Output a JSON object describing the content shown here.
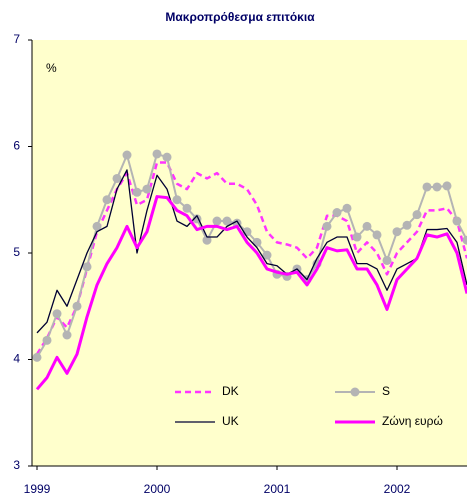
{
  "chart_data": {
    "type": "line",
    "title": "Μακροπρόθεσμα επιτόκια",
    "y_unit_label": "%",
    "categories": [
      "1999",
      null,
      null,
      null,
      null,
      null,
      null,
      null,
      null,
      null,
      null,
      null,
      "2000",
      null,
      null,
      null,
      null,
      null,
      null,
      null,
      null,
      null,
      null,
      null,
      "2001",
      null,
      null,
      null,
      null,
      null,
      null,
      null,
      null,
      null,
      null,
      null,
      "2002",
      null,
      null,
      null,
      null,
      null,
      null,
      null
    ],
    "ylim": [
      3,
      7
    ],
    "yticks": [
      3,
      4,
      5,
      6,
      7
    ],
    "grid": false,
    "series": [
      {
        "name": "DK",
        "color": "#ff33ff",
        "dash": true,
        "marker": false,
        "width": 2.5,
        "values": [
          4.05,
          4.2,
          4.4,
          4.3,
          4.5,
          4.85,
          5.2,
          5.4,
          5.6,
          5.75,
          5.45,
          5.5,
          5.85,
          5.85,
          5.65,
          5.6,
          5.75,
          5.7,
          5.75,
          5.65,
          5.65,
          5.6,
          5.45,
          5.2,
          5.1,
          5.08,
          5.05,
          4.95,
          5.05,
          5.35,
          5.35,
          5.3,
          5.0,
          5.1,
          5.0,
          4.8,
          5.0,
          5.1,
          5.2,
          5.4,
          5.4,
          5.42,
          5.3,
          4.95
        ]
      },
      {
        "name": "S",
        "color": "#b4b4b4",
        "dash": false,
        "marker": true,
        "width": 2,
        "values": [
          4.02,
          4.18,
          4.43,
          4.23,
          4.5,
          4.87,
          5.25,
          5.5,
          5.7,
          5.92,
          5.57,
          5.6,
          5.93,
          5.9,
          5.5,
          5.42,
          5.32,
          5.12,
          5.3,
          5.3,
          5.28,
          5.2,
          5.1,
          4.98,
          4.8,
          4.78,
          4.85,
          4.75,
          4.9,
          5.25,
          5.38,
          5.42,
          5.15,
          5.25,
          5.17,
          4.93,
          5.2,
          5.26,
          5.36,
          5.62,
          5.62,
          5.63,
          5.3,
          5.12
        ]
      },
      {
        "name": "UK",
        "color": "#000033",
        "dash": false,
        "marker": false,
        "width": 1.3,
        "values": [
          4.25,
          4.35,
          4.65,
          4.5,
          4.75,
          5.0,
          5.2,
          5.25,
          5.6,
          5.78,
          5.0,
          5.4,
          5.73,
          5.6,
          5.3,
          5.25,
          5.35,
          5.15,
          5.15,
          5.25,
          5.3,
          5.15,
          5.05,
          4.9,
          4.88,
          4.8,
          4.85,
          4.75,
          4.95,
          5.1,
          5.15,
          5.15,
          4.9,
          4.9,
          4.85,
          4.65,
          4.85,
          4.9,
          4.95,
          5.22,
          5.22,
          5.23,
          5.1,
          4.7
        ]
      },
      {
        "name": "Ζώνη ευρώ",
        "color": "#ff00ff",
        "dash": false,
        "marker": false,
        "width": 3,
        "values": [
          3.72,
          3.83,
          4.02,
          3.87,
          4.05,
          4.4,
          4.7,
          4.9,
          5.05,
          5.25,
          5.05,
          5.2,
          5.53,
          5.52,
          5.4,
          5.35,
          5.22,
          5.25,
          5.25,
          5.22,
          5.25,
          5.1,
          5.0,
          4.85,
          4.82,
          4.8,
          4.82,
          4.7,
          4.85,
          5.05,
          5.02,
          5.03,
          4.85,
          4.85,
          4.7,
          4.47,
          4.75,
          4.85,
          4.95,
          5.17,
          5.15,
          5.18,
          5.0,
          4.62
        ]
      }
    ]
  }
}
